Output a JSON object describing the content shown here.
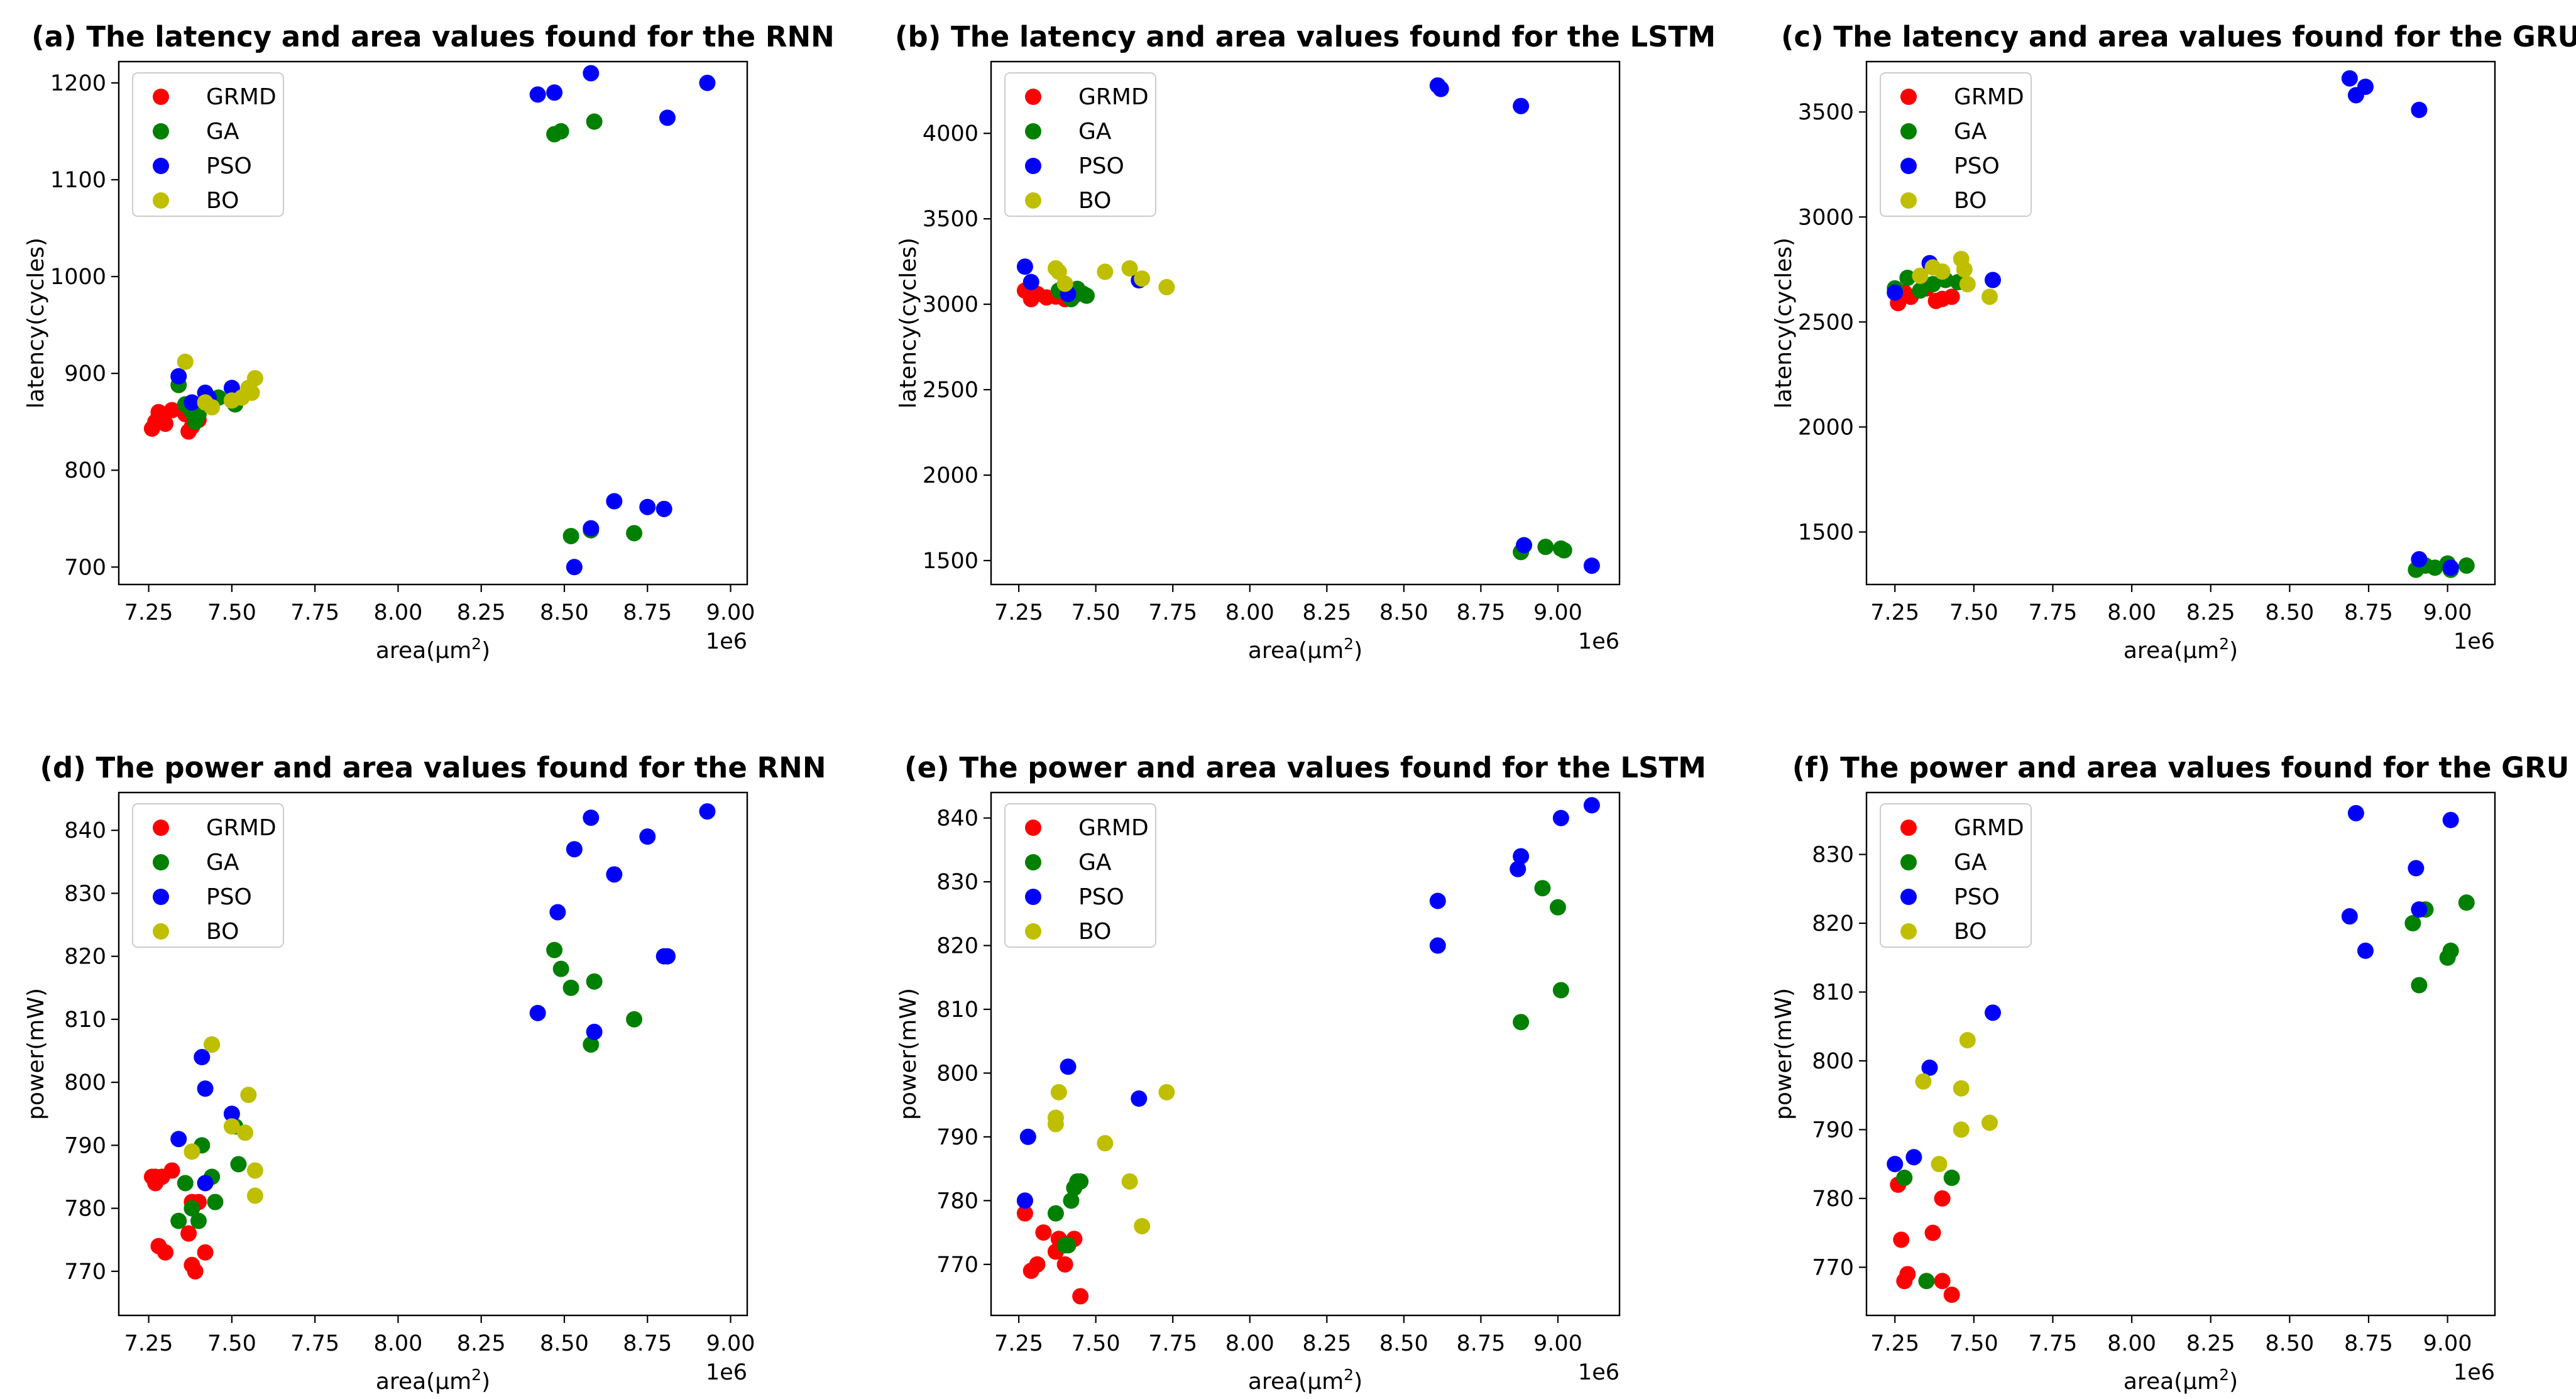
{
  "figure": {
    "colors": {
      "GRMD": "#ff0000",
      "GA": "#008000",
      "PSO": "#0000ff",
      "BO": "#bfbf00"
    },
    "legend_order": [
      "GRMD",
      "GA",
      "PSO",
      "BO"
    ],
    "x_axis_label": "area(μm",
    "x_axis_label_sup": "2",
    "x_axis_label_end": ")",
    "x_offset_text": "1e6"
  },
  "chart_data": [
    {
      "type": "scatter",
      "title": "(a) The latency and area values found for the RNN",
      "ylabel": "latency(cycles)",
      "xlim": [
        7.16,
        9.05
      ],
      "xticks": [
        7.25,
        7.5,
        7.75,
        8.0,
        8.25,
        8.5,
        8.75,
        9.0
      ],
      "xtick_labels": [
        "7.25",
        "7.50",
        "7.75",
        "8.00",
        "8.25",
        "8.50",
        "8.75",
        "9.00"
      ],
      "ylim": [
        682,
        1222
      ],
      "yticks": [
        700,
        800,
        900,
        1000,
        1100,
        1200
      ],
      "ytick_labels": [
        "700",
        "800",
        "900",
        "1000",
        "1100",
        "1200"
      ],
      "legend_position": "top-left",
      "series": [
        {
          "name": "GRMD",
          "x": [
            7.26,
            7.27,
            7.28,
            7.3,
            7.32,
            7.37,
            7.38,
            7.4,
            7.36,
            7.29
          ],
          "y": [
            843,
            850,
            860,
            848,
            862,
            840,
            845,
            852,
            858,
            855
          ]
        },
        {
          "name": "GA",
          "x": [
            7.36,
            7.38,
            7.4,
            7.42,
            7.46,
            7.5,
            7.51,
            7.34,
            7.39,
            8.47,
            8.49,
            8.59,
            8.52,
            8.58,
            8.71
          ],
          "y": [
            868,
            860,
            858,
            870,
            875,
            872,
            868,
            888,
            850,
            1147,
            1150,
            1160,
            732,
            738,
            735
          ]
        },
        {
          "name": "PSO",
          "x": [
            7.34,
            7.42,
            7.43,
            7.5,
            7.38,
            8.42,
            8.47,
            8.58,
            8.81,
            8.93,
            8.53,
            8.58,
            8.65,
            8.75,
            8.8
          ],
          "y": [
            897,
            880,
            875,
            885,
            870,
            1188,
            1190,
            1210,
            1164,
            1200,
            700,
            740,
            768,
            762,
            760
          ]
        },
        {
          "name": "BO",
          "x": [
            7.36,
            7.44,
            7.5,
            7.53,
            7.56,
            7.55,
            7.57,
            7.42
          ],
          "y": [
            912,
            865,
            872,
            875,
            880,
            885,
            895,
            870
          ]
        }
      ]
    },
    {
      "type": "scatter",
      "title": "(b) The latency and area values found for the LSTM",
      "ylabel": "latency(cycles)",
      "xlim": [
        7.16,
        9.2
      ],
      "xticks": [
        7.25,
        7.5,
        7.75,
        8.0,
        8.25,
        8.5,
        8.75,
        9.0
      ],
      "xtick_labels": [
        "7.25",
        "7.50",
        "7.75",
        "8.00",
        "8.25",
        "8.50",
        "8.75",
        "9.00"
      ],
      "ylim": [
        1360,
        4420
      ],
      "yticks": [
        1500,
        2000,
        2500,
        3000,
        3500,
        4000
      ],
      "ytick_labels": [
        "1500",
        "2000",
        "2500",
        "3000",
        "3500",
        "4000"
      ],
      "legend_position": "top-left",
      "series": [
        {
          "name": "GRMD",
          "x": [
            7.27,
            7.29,
            7.31,
            7.34,
            7.37,
            7.4,
            7.43,
            7.28
          ],
          "y": [
            3080,
            3030,
            3060,
            3040,
            3045,
            3030,
            3050,
            3070
          ]
        },
        {
          "name": "GA",
          "x": [
            7.38,
            7.42,
            7.44,
            7.46,
            7.47,
            8.88,
            8.96,
            9.01,
            9.02
          ],
          "y": [
            3080,
            3030,
            3090,
            3060,
            3050,
            1550,
            1580,
            1570,
            1560
          ]
        },
        {
          "name": "PSO",
          "x": [
            7.27,
            7.29,
            7.41,
            7.64,
            8.61,
            8.62,
            8.88,
            8.89,
            9.11
          ],
          "y": [
            3220,
            3130,
            3060,
            3140,
            4280,
            4260,
            4160,
            1590,
            1470
          ]
        },
        {
          "name": "BO",
          "x": [
            7.37,
            7.38,
            7.4,
            7.53,
            7.61,
            7.65,
            7.73
          ],
          "y": [
            3210,
            3190,
            3120,
            3190,
            3210,
            3150,
            3100
          ]
        }
      ]
    },
    {
      "type": "scatter",
      "title": "(c) The latency and area values found for the GRU",
      "ylabel": "latency(cycles)",
      "xlim": [
        7.16,
        9.15
      ],
      "xticks": [
        7.25,
        7.5,
        7.75,
        8.0,
        8.25,
        8.5,
        8.75,
        9.0
      ],
      "xtick_labels": [
        "7.25",
        "7.50",
        "7.75",
        "8.00",
        "8.25",
        "8.50",
        "8.75",
        "9.00"
      ],
      "ylim": [
        1250,
        3740
      ],
      "yticks": [
        1500,
        2000,
        2500,
        3000,
        3500
      ],
      "ytick_labels": [
        "1500",
        "2000",
        "2500",
        "3000",
        "3500"
      ],
      "legend_position": "top-left",
      "series": [
        {
          "name": "GRMD",
          "x": [
            7.26,
            7.28,
            7.3,
            7.35,
            7.38,
            7.4,
            7.43
          ],
          "y": [
            2590,
            2640,
            2620,
            2660,
            2600,
            2610,
            2620
          ]
        },
        {
          "name": "GA",
          "x": [
            7.25,
            7.29,
            7.33,
            7.37,
            7.41,
            7.45,
            8.9,
            8.93,
            8.96,
            9.0,
            9.01,
            9.06
          ],
          "y": [
            2660,
            2710,
            2650,
            2680,
            2700,
            2690,
            1320,
            1340,
            1330,
            1350,
            1320,
            1340
          ]
        },
        {
          "name": "PSO",
          "x": [
            7.25,
            7.36,
            7.56,
            8.69,
            8.71,
            8.74,
            8.91,
            8.91,
            9.01
          ],
          "y": [
            2640,
            2780,
            2700,
            3660,
            3580,
            3620,
            3510,
            1370,
            1330
          ]
        },
        {
          "name": "BO",
          "x": [
            7.33,
            7.37,
            7.4,
            7.46,
            7.47,
            7.48,
            7.55
          ],
          "y": [
            2720,
            2760,
            2740,
            2800,
            2750,
            2680,
            2620
          ]
        }
      ]
    },
    {
      "type": "scatter",
      "title": "(d) The power and area values found for the RNN",
      "ylabel": "power(mW)",
      "xlim": [
        7.16,
        9.05
      ],
      "xticks": [
        7.25,
        7.5,
        7.75,
        8.0,
        8.25,
        8.5,
        8.75,
        9.0
      ],
      "xtick_labels": [
        "7.25",
        "7.50",
        "7.75",
        "8.00",
        "8.25",
        "8.50",
        "8.75",
        "9.00"
      ],
      "ylim": [
        763,
        846
      ],
      "yticks": [
        770,
        780,
        790,
        800,
        810,
        820,
        830,
        840
      ],
      "ytick_labels": [
        "770",
        "780",
        "790",
        "800",
        "810",
        "820",
        "830",
        "840"
      ],
      "legend_position": "top-left",
      "series": [
        {
          "name": "GRMD",
          "x": [
            7.26,
            7.27,
            7.28,
            7.3,
            7.32,
            7.37,
            7.38,
            7.39,
            7.4,
            7.42,
            7.27,
            7.29,
            7.38
          ],
          "y": [
            785,
            784,
            774,
            773,
            786,
            776,
            771,
            770,
            781,
            773,
            785,
            785,
            781
          ]
        },
        {
          "name": "GA",
          "x": [
            7.34,
            7.36,
            7.38,
            7.4,
            7.41,
            7.44,
            7.45,
            7.51,
            7.52,
            7.44,
            8.47,
            8.49,
            8.52,
            8.59,
            8.58,
            8.71
          ],
          "y": [
            778,
            784,
            780,
            778,
            790,
            785,
            781,
            793,
            787,
            806,
            821,
            818,
            815,
            816,
            806,
            810
          ]
        },
        {
          "name": "PSO",
          "x": [
            7.34,
            7.41,
            7.42,
            7.42,
            7.5,
            8.42,
            8.48,
            8.53,
            8.58,
            8.59,
            8.65,
            8.75,
            8.8,
            8.81,
            8.93
          ],
          "y": [
            791,
            804,
            799,
            784,
            795,
            811,
            827,
            837,
            842,
            808,
            833,
            839,
            820,
            820,
            843
          ]
        },
        {
          "name": "BO",
          "x": [
            7.38,
            7.44,
            7.5,
            7.54,
            7.55,
            7.57,
            7.57
          ],
          "y": [
            789,
            806,
            793,
            792,
            798,
            786,
            782
          ]
        }
      ]
    },
    {
      "type": "scatter",
      "title": "(e) The power and area values found for the LSTM",
      "ylabel": "power(mW)",
      "xlim": [
        7.16,
        9.2
      ],
      "xticks": [
        7.25,
        7.5,
        7.75,
        8.0,
        8.25,
        8.5,
        8.75,
        9.0
      ],
      "xtick_labels": [
        "7.25",
        "7.50",
        "7.75",
        "8.00",
        "8.25",
        "8.50",
        "8.75",
        "9.00"
      ],
      "ylim": [
        762,
        844
      ],
      "yticks": [
        770,
        780,
        790,
        800,
        810,
        820,
        830,
        840
      ],
      "ytick_labels": [
        "770",
        "780",
        "790",
        "800",
        "810",
        "820",
        "830",
        "840"
      ],
      "legend_position": "top-left",
      "series": [
        {
          "name": "GRMD",
          "x": [
            7.27,
            7.27,
            7.29,
            7.31,
            7.33,
            7.37,
            7.38,
            7.4,
            7.43,
            7.45
          ],
          "y": [
            780,
            778,
            769,
            770,
            775,
            772,
            774,
            770,
            774,
            765
          ]
        },
        {
          "name": "GA",
          "x": [
            7.37,
            7.4,
            7.41,
            7.42,
            7.43,
            7.44,
            7.45,
            8.88,
            8.95,
            9.0,
            9.01
          ],
          "y": [
            778,
            773,
            773,
            780,
            782,
            783,
            783,
            808,
            829,
            826,
            813
          ]
        },
        {
          "name": "PSO",
          "x": [
            7.28,
            7.27,
            7.41,
            7.64,
            8.61,
            8.61,
            8.87,
            8.88,
            9.01,
            9.11
          ],
          "y": [
            790,
            780,
            801,
            796,
            827,
            820,
            832,
            834,
            840,
            842
          ]
        },
        {
          "name": "BO",
          "x": [
            7.37,
            7.37,
            7.38,
            7.53,
            7.61,
            7.65,
            7.73
          ],
          "y": [
            792,
            793,
            797,
            789,
            783,
            776,
            797
          ]
        }
      ]
    },
    {
      "type": "scatter",
      "title": "(f) The power and area values found for the GRU",
      "ylabel": "power(mW)",
      "xlim": [
        7.16,
        9.15
      ],
      "xticks": [
        7.25,
        7.5,
        7.75,
        8.0,
        8.25,
        8.5,
        8.75,
        9.0
      ],
      "xtick_labels": [
        "7.25",
        "7.50",
        "7.75",
        "8.00",
        "8.25",
        "8.50",
        "8.75",
        "9.00"
      ],
      "ylim": [
        763,
        839
      ],
      "yticks": [
        770,
        780,
        790,
        800,
        810,
        820,
        830
      ],
      "ytick_labels": [
        "770",
        "780",
        "790",
        "800",
        "810",
        "820",
        "830"
      ],
      "legend_position": "top-left",
      "series": [
        {
          "name": "GRMD",
          "x": [
            7.26,
            7.27,
            7.28,
            7.29,
            7.37,
            7.4,
            7.4,
            7.43
          ],
          "y": [
            782,
            774,
            768,
            769,
            775,
            780,
            768,
            766
          ]
        },
        {
          "name": "GA",
          "x": [
            7.28,
            7.35,
            7.43,
            8.89,
            8.91,
            8.93,
            9.0,
            9.01,
            9.06
          ],
          "y": [
            783,
            768,
            783,
            820,
            811,
            822,
            815,
            816,
            823
          ]
        },
        {
          "name": "PSO",
          "x": [
            7.25,
            7.31,
            7.36,
            7.56,
            8.69,
            8.71,
            8.74,
            8.9,
            8.91,
            9.01
          ],
          "y": [
            785,
            786,
            799,
            807,
            821,
            836,
            816,
            828,
            822,
            835
          ]
        },
        {
          "name": "BO",
          "x": [
            7.34,
            7.39,
            7.46,
            7.46,
            7.48,
            7.55
          ],
          "y": [
            797,
            785,
            796,
            790,
            803,
            791
          ]
        }
      ]
    }
  ]
}
